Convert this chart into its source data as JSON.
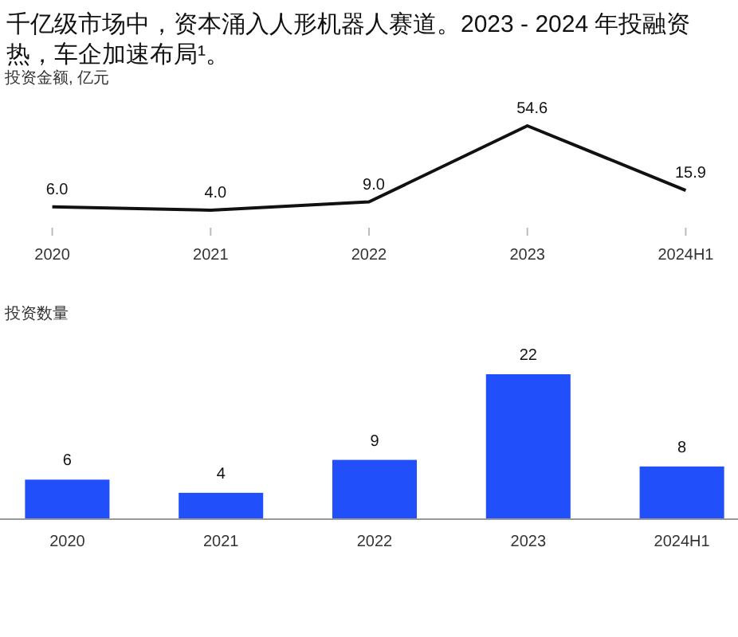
{
  "chart_data": [
    {
      "type": "line",
      "title": "千亿级市场中，资本涌入人形机器人赛道。2023 - 2024 年投融资热，车企加速布局¹。",
      "ylabel": "投资金额, 亿元",
      "categories": [
        "2020",
        "2021",
        "2022",
        "2023",
        "2024H1"
      ],
      "series": [
        {
          "color": "#111111",
          "values": [
            6.0,
            4.0,
            9.0,
            54.6,
            15.9
          ],
          "value_labels": [
            "6.0",
            "4.0",
            "9.0",
            "54.6",
            "15.9"
          ]
        }
      ],
      "tick_labels": "x",
      "marker": "none"
    },
    {
      "type": "bar",
      "ylabel": "投资数量",
      "categories": [
        "2020",
        "2021",
        "2022",
        "2023",
        "2024H1"
      ],
      "series": [
        {
          "color": "#2150fa",
          "values": [
            6,
            4,
            9,
            22,
            8
          ]
        }
      ],
      "data_labels": true,
      "tick_labels": "x"
    }
  ]
}
